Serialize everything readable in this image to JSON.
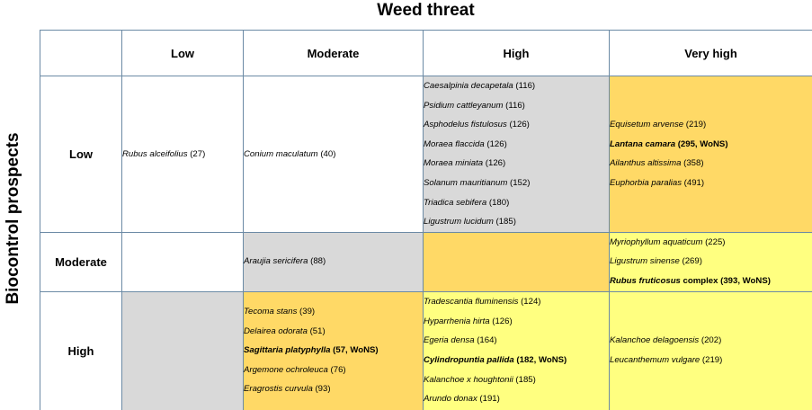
{
  "title": "Weed threat",
  "y_axis_label": "Biocontrol prospects",
  "columns": [
    "Low",
    "Moderate",
    "High",
    "Very high"
  ],
  "rows": [
    "Low",
    "Moderate",
    "High"
  ],
  "colors": {
    "grey": "#d9d9d9",
    "orange": "#ffd966",
    "yellow": "#ffff80",
    "border": "#6b8aa5"
  },
  "cells": {
    "low_low": [
      {
        "species": "Rubus alceifolius",
        "count": " (27)",
        "bold": false
      }
    ],
    "low_moderate": [
      {
        "species": "Conium maculatum",
        "count": " (40)",
        "bold": false
      }
    ],
    "low_high": [
      {
        "species": "Caesalpinia decapetala",
        "count": " (116)",
        "bold": false
      },
      {
        "species": "Psidium cattleyanum",
        "count": " (116)",
        "bold": false
      },
      {
        "species": "Asphodelus fistulosus",
        "count": " (126)",
        "bold": false
      },
      {
        "species": "Moraea flaccida",
        "count": " (126)",
        "bold": false
      },
      {
        "species": "Moraea miniata",
        "count": " (126)",
        "bold": false
      },
      {
        "species": "Solanum mauritianum",
        "count": " (152)",
        "bold": false
      },
      {
        "species": "Triadica sebifera",
        "count": " (180)",
        "bold": false
      },
      {
        "species": "Ligustrum lucidum",
        "count": " (185)",
        "bold": false
      }
    ],
    "low_veryhigh": [
      {
        "species": "Equisetum arvense",
        "count": " (219)",
        "bold": false
      },
      {
        "species": "Lantana camara",
        "count": " (295, WoNS)",
        "bold": true
      },
      {
        "species": "Ailanthus altissima",
        "count": " (358)",
        "bold": false
      },
      {
        "species": "Euphorbia paralias",
        "count": " (491)",
        "bold": false
      }
    ],
    "moderate_moderate": [
      {
        "species": "Araujia sericifera",
        "count": " (88)",
        "bold": false
      }
    ],
    "moderate_veryhigh": [
      {
        "species": "Myriophyllum aquaticum",
        "count": " (225)",
        "bold": false
      },
      {
        "species": "Ligustrum sinense",
        "count": " (269)",
        "bold": false
      },
      {
        "species": "Rubus fruticosus",
        "count": " complex (393, WoNS)",
        "bold": true
      }
    ],
    "high_moderate": [
      {
        "species": "Tecoma stans",
        "count": " (39)",
        "bold": false
      },
      {
        "species": "Delairea odorata",
        "count": " (51)",
        "bold": false
      },
      {
        "species": "Sagittaria platyphylla",
        "count": " (57, WoNS)",
        "bold": true
      },
      {
        "species": "Argemone ochroleuca",
        "count": " (76)",
        "bold": false
      },
      {
        "species": "Eragrostis curvula",
        "count": " (93)",
        "bold": false
      }
    ],
    "high_high": [
      {
        "species": "Tradescantia fluminensis",
        "count": " (124)",
        "bold": false
      },
      {
        "species": "Hyparrhenia hirta",
        "count": " (126)",
        "bold": false
      },
      {
        "species": "Egeria densa",
        "count": " (164)",
        "bold": false
      },
      {
        "species": "Cylindropuntia pallida",
        "count": " (182, WoNS)",
        "bold": true
      },
      {
        "species": "Kalanchoe x houghtonii",
        "count": " (185)",
        "bold": false
      },
      {
        "species": "Arundo donax",
        "count": " (191)",
        "bold": false
      }
    ],
    "high_veryhigh": [
      {
        "species": "Kalanchoe delagoensis",
        "count": " (202)",
        "bold": false
      },
      {
        "species": "Leucanthemum vulgare",
        "count": " (219)",
        "bold": false
      }
    ]
  }
}
